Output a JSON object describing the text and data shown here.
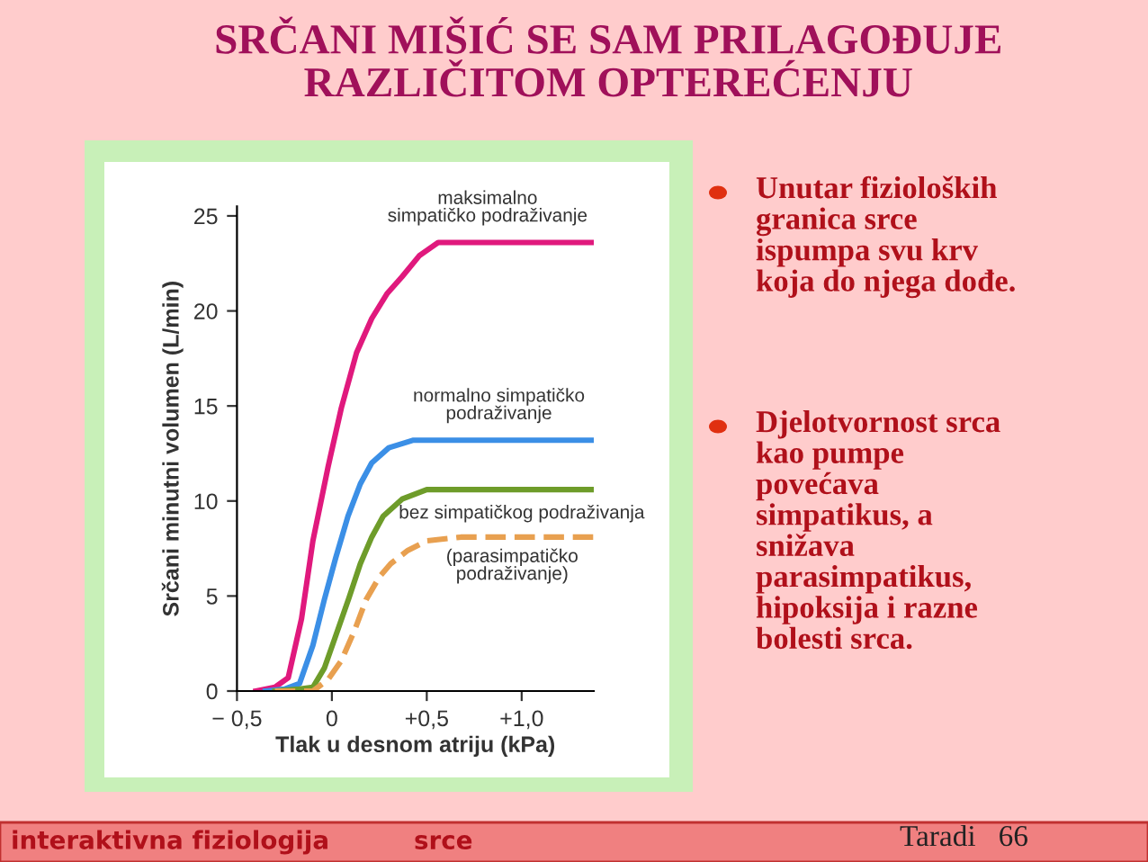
{
  "chart_data": {
    "type": "line",
    "title": "SRČANI MIŠIĆ SE SAM PRILAGOĐUJE\nRAZLIČITOM OPTEREĆENJU",
    "xlabel": "Tlak u desnom atriju (kPa)",
    "ylabel": "Srčani minutni volumen (L/min)",
    "xlim": [
      -0.5,
      1.38
    ],
    "ylim": [
      0,
      25.5
    ],
    "xticks": [
      {
        "value": -0.5,
        "label": "− 0,5"
      },
      0,
      {
        "value": 0.5,
        "label": "+0,5"
      },
      {
        "value": 1.0,
        "label": "+1,0"
      }
    ],
    "yticks": [
      0,
      5,
      10,
      15,
      20,
      25
    ],
    "grid": false,
    "legend": false,
    "series": [
      {
        "name": "maksimalno\nsimpatičko podraživanje",
        "color": "#e0197d",
        "line_style": "solid",
        "x": [
          -0.4,
          -0.3,
          -0.23,
          -0.16,
          -0.1,
          -0.02,
          0.05,
          0.13,
          0.21,
          0.29,
          0.37,
          0.46,
          0.56,
          0.7,
          1.38
        ],
        "values": [
          0,
          0.2,
          0.7,
          3.8,
          7.9,
          11.8,
          14.9,
          17.8,
          19.6,
          20.9,
          21.8,
          22.9,
          23.6,
          23.6,
          23.6
        ]
      },
      {
        "name": "normalno simpatičko\npodraživanje",
        "color": "#3b8fe6",
        "line_style": "solid",
        "x": [
          -0.35,
          -0.25,
          -0.17,
          -0.1,
          -0.04,
          0.02,
          0.085,
          0.15,
          0.21,
          0.3,
          0.43,
          0.6,
          1.38
        ],
        "values": [
          0,
          0.1,
          0.4,
          2.4,
          4.8,
          7.0,
          9.2,
          10.9,
          12.0,
          12.8,
          13.2,
          13.2,
          13.2
        ]
      },
      {
        "name": "bez simpatičkog podraživanja",
        "color": "#6e9c2a",
        "line_style": "solid",
        "x": [
          -0.3,
          -0.17,
          -0.1,
          -0.04,
          0.02,
          0.09,
          0.15,
          0.21,
          0.27,
          0.37,
          0.5,
          0.7,
          1.38
        ],
        "values": [
          0,
          0.1,
          0.2,
          1.2,
          2.9,
          4.9,
          6.7,
          8.1,
          9.2,
          10.1,
          10.6,
          10.6,
          10.6
        ]
      },
      {
        "name": "(parasimpatičko\npodraživanje)",
        "color": "#e8a050",
        "line_style": "dashed",
        "x": [
          -0.3,
          -0.1,
          -0.02,
          0.05,
          0.12,
          0.18,
          0.25,
          0.31,
          0.4,
          0.5,
          0.68,
          1.38
        ],
        "values": [
          0,
          0,
          0.6,
          1.6,
          3.2,
          4.8,
          6.0,
          6.7,
          7.4,
          7.9,
          8.1,
          8.1
        ]
      }
    ],
    "annotations": [
      "Unutar fizioloških\ngranica srce\nispumpa svu krv\nkoja do njega dođe.",
      "Djelotvornost srca\nkao pumpe\npovećava\nsimpatikus, a\nsnižava\nparasimpatikus,\nhipoksija i razne\nbolesti srca.",
      "interaktivna fiziologija",
      "srce",
      "Taradi   66"
    ]
  }
}
